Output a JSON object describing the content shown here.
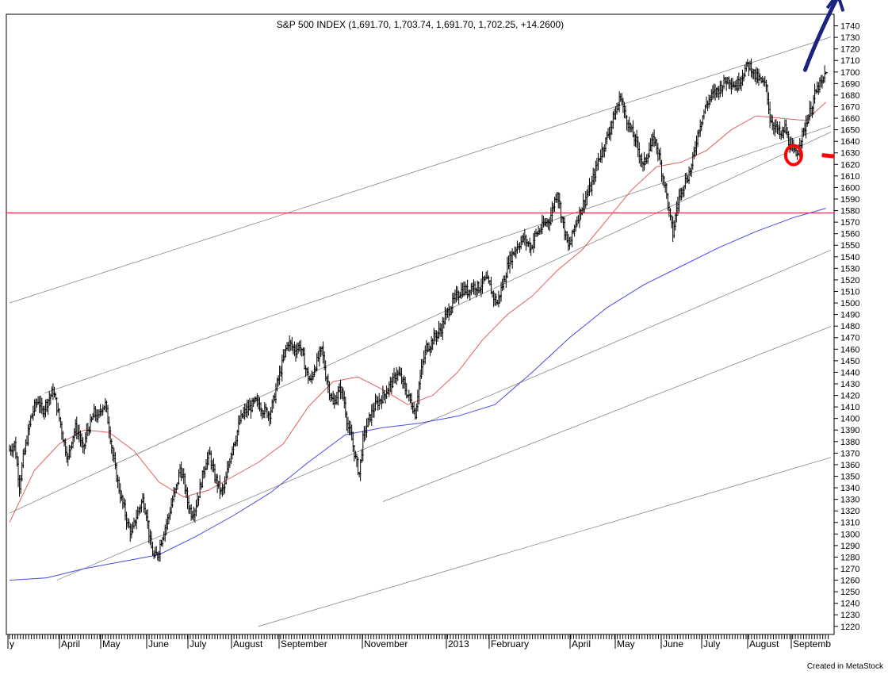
{
  "chart_data": {
    "type": "bar",
    "subtype": "ohlc",
    "title": "S&P 500 INDEX (1,691.70, 1,703.74, 1,691.70, 1,702.25, +14.2600)",
    "series": [
      {
        "name": "S&P 500 INDEX",
        "kind": "ohlc",
        "color": "#000000"
      }
    ],
    "last_bar": {
      "open": 1691.7,
      "high": 1703.74,
      "low": 1691.7,
      "close": 1702.25,
      "change": 14.26
    },
    "x_labels": [
      "y",
      "April",
      "May",
      "June",
      "July",
      "August",
      "September",
      "November",
      "2013",
      "February",
      "April",
      "May",
      "June",
      "July",
      "August",
      "Septemb"
    ],
    "y_ticks": [
      1220,
      1230,
      1240,
      1250,
      1260,
      1270,
      1280,
      1290,
      1300,
      1310,
      1320,
      1330,
      1340,
      1350,
      1360,
      1370,
      1380,
      1390,
      1400,
      1410,
      1420,
      1430,
      1440,
      1450,
      1460,
      1470,
      1480,
      1490,
      1500,
      1510,
      1520,
      1530,
      1540,
      1550,
      1560,
      1570,
      1580,
      1590,
      1600,
      1610,
      1620,
      1630,
      1640,
      1650,
      1660,
      1670,
      1680,
      1690,
      1700,
      1710,
      1720,
      1730,
      1740
    ],
    "ylim": [
      1213,
      1750
    ],
    "y_axis_position": "right",
    "grid": false,
    "price_path": [
      [
        0,
        1373
      ],
      [
        2,
        1375
      ],
      [
        4,
        1378
      ],
      [
        6,
        1360
      ],
      [
        8,
        1342
      ],
      [
        11,
        1366
      ],
      [
        14,
        1382
      ],
      [
        17,
        1400
      ],
      [
        20,
        1410
      ],
      [
        23,
        1416
      ],
      [
        26,
        1406
      ],
      [
        29,
        1412
      ],
      [
        32,
        1418
      ],
      [
        35,
        1424
      ],
      [
        38,
        1410
      ],
      [
        41,
        1395
      ],
      [
        44,
        1378
      ],
      [
        47,
        1365
      ],
      [
        50,
        1382
      ],
      [
        53,
        1392
      ],
      [
        56,
        1386
      ],
      [
        59,
        1372
      ],
      [
        62,
        1388
      ],
      [
        65,
        1395
      ],
      [
        68,
        1405
      ],
      [
        71,
        1400
      ],
      [
        74,
        1410
      ],
      [
        77,
        1412
      ],
      [
        80,
        1392
      ],
      [
        83,
        1368
      ],
      [
        86,
        1350
      ],
      [
        89,
        1334
      ],
      [
        92,
        1322
      ],
      [
        95,
        1308
      ],
      [
        98,
        1300
      ],
      [
        101,
        1312
      ],
      [
        104,
        1322
      ],
      [
        107,
        1330
      ],
      [
        110,
        1318
      ],
      [
        113,
        1292
      ],
      [
        116,
        1280
      ],
      [
        119,
        1282
      ],
      [
        122,
        1295
      ],
      [
        125,
        1306
      ],
      [
        128,
        1316
      ],
      [
        131,
        1330
      ],
      [
        134,
        1340
      ],
      [
        137,
        1357
      ],
      [
        140,
        1346
      ],
      [
        143,
        1328
      ],
      [
        146,
        1318
      ],
      [
        149,
        1322
      ],
      [
        152,
        1335
      ],
      [
        155,
        1350
      ],
      [
        158,
        1364
      ],
      [
        161,
        1368
      ],
      [
        164,
        1352
      ],
      [
        167,
        1344
      ],
      [
        170,
        1336
      ],
      [
        173,
        1342
      ],
      [
        176,
        1360
      ],
      [
        179,
        1376
      ],
      [
        182,
        1384
      ],
      [
        185,
        1398
      ],
      [
        188,
        1404
      ],
      [
        191,
        1408
      ],
      [
        194,
        1410
      ],
      [
        197,
        1414
      ],
      [
        200,
        1413
      ],
      [
        203,
        1408
      ],
      [
        206,
        1406
      ],
      [
        209,
        1404
      ],
      [
        212,
        1415
      ],
      [
        215,
        1430
      ],
      [
        218,
        1442
      ],
      [
        221,
        1457
      ],
      [
        224,
        1466
      ],
      [
        227,
        1462
      ],
      [
        230,
        1459
      ],
      [
        233,
        1464
      ],
      [
        236,
        1452
      ],
      [
        239,
        1438
      ],
      [
        242,
        1432
      ],
      [
        245,
        1444
      ],
      [
        248,
        1452
      ],
      [
        251,
        1460
      ],
      [
        254,
        1438
      ],
      [
        257,
        1424
      ],
      [
        260,
        1412
      ],
      [
        263,
        1420
      ],
      [
        266,
        1426
      ],
      [
        269,
        1414
      ],
      [
        272,
        1392
      ],
      [
        275,
        1382
      ],
      [
        278,
        1365
      ],
      [
        281,
        1352
      ],
      [
        284,
        1382
      ],
      [
        287,
        1394
      ],
      [
        290,
        1402
      ],
      [
        293,
        1410
      ],
      [
        296,
        1414
      ],
      [
        299,
        1418
      ],
      [
        302,
        1422
      ],
      [
        305,
        1428
      ],
      [
        308,
        1432
      ],
      [
        311,
        1440
      ],
      [
        314,
        1436
      ],
      [
        317,
        1428
      ],
      [
        320,
        1420
      ],
      [
        323,
        1413
      ],
      [
        326,
        1404
      ],
      [
        329,
        1430
      ],
      [
        332,
        1448
      ],
      [
        335,
        1462
      ],
      [
        338,
        1464
      ],
      [
        341,
        1470
      ],
      [
        344,
        1474
      ],
      [
        347,
        1478
      ],
      [
        350,
        1488
      ],
      [
        353,
        1494
      ],
      [
        356,
        1500
      ],
      [
        359,
        1506
      ],
      [
        362,
        1510
      ],
      [
        365,
        1512
      ],
      [
        368,
        1510
      ],
      [
        371,
        1514
      ],
      [
        374,
        1515
      ],
      [
        377,
        1513
      ],
      [
        380,
        1518
      ],
      [
        383,
        1520
      ],
      [
        386,
        1514
      ],
      [
        389,
        1505
      ],
      [
        392,
        1500
      ],
      [
        395,
        1512
      ],
      [
        398,
        1522
      ],
      [
        401,
        1536
      ],
      [
        404,
        1542
      ],
      [
        407,
        1548
      ],
      [
        410,
        1552
      ],
      [
        413,
        1556
      ],
      [
        416,
        1552
      ],
      [
        419,
        1548
      ],
      [
        422,
        1558
      ],
      [
        425,
        1562
      ],
      [
        428,
        1566
      ],
      [
        431,
        1570
      ],
      [
        434,
        1572
      ],
      [
        437,
        1585
      ],
      [
        440,
        1597
      ],
      [
        443,
        1578
      ],
      [
        446,
        1562
      ],
      [
        449,
        1548
      ],
      [
        452,
        1558
      ],
      [
        455,
        1570
      ],
      [
        458,
        1578
      ],
      [
        461,
        1586
      ],
      [
        464,
        1594
      ],
      [
        467,
        1600
      ],
      [
        470,
        1612
      ],
      [
        473,
        1624
      ],
      [
        476,
        1632
      ],
      [
        479,
        1640
      ],
      [
        482,
        1650
      ],
      [
        485,
        1660
      ],
      [
        488,
        1668
      ],
      [
        491,
        1680
      ],
      [
        494,
        1664
      ],
      [
        497,
        1656
      ],
      [
        500,
        1648
      ],
      [
        503,
        1640
      ],
      [
        506,
        1630
      ],
      [
        509,
        1618
      ],
      [
        512,
        1628
      ],
      [
        515,
        1636
      ],
      [
        518,
        1642
      ],
      [
        521,
        1632
      ],
      [
        524,
        1614
      ],
      [
        527,
        1600
      ],
      [
        530,
        1578
      ],
      [
        533,
        1560
      ],
      [
        536,
        1582
      ],
      [
        539,
        1596
      ],
      [
        542,
        1604
      ],
      [
        545,
        1610
      ],
      [
        548,
        1618
      ],
      [
        551,
        1636
      ],
      [
        554,
        1652
      ],
      [
        557,
        1662
      ],
      [
        560,
        1672
      ],
      [
        563,
        1678
      ],
      [
        566,
        1682
      ],
      [
        569,
        1684
      ],
      [
        572,
        1688
      ],
      [
        575,
        1692
      ],
      [
        578,
        1694
      ],
      [
        581,
        1690
      ],
      [
        584,
        1688
      ],
      [
        587,
        1694
      ],
      [
        590,
        1700
      ],
      [
        593,
        1706
      ],
      [
        596,
        1704
      ],
      [
        599,
        1696
      ],
      [
        602,
        1694
      ],
      [
        605,
        1690
      ],
      [
        608,
        1688
      ],
      [
        611,
        1660
      ],
      [
        614,
        1654
      ],
      [
        617,
        1650
      ],
      [
        620,
        1644
      ],
      [
        623,
        1652
      ],
      [
        626,
        1640
      ],
      [
        629,
        1632
      ],
      [
        632,
        1628
      ],
      [
        635,
        1640
      ],
      [
        638,
        1648
      ],
      [
        641,
        1660
      ],
      [
        644,
        1668
      ],
      [
        647,
        1680
      ],
      [
        650,
        1688
      ],
      [
        653,
        1690
      ],
      [
        656,
        1702
      ]
    ],
    "moving_averages": [
      {
        "name": "short moving average",
        "color": "#e06060",
        "points": [
          [
            0,
            1310
          ],
          [
            20,
            1355
          ],
          [
            40,
            1378
          ],
          [
            60,
            1390
          ],
          [
            80,
            1388
          ],
          [
            100,
            1372
          ],
          [
            120,
            1345
          ],
          [
            140,
            1332
          ],
          [
            160,
            1338
          ],
          [
            180,
            1350
          ],
          [
            200,
            1362
          ],
          [
            220,
            1378
          ],
          [
            240,
            1410
          ],
          [
            260,
            1432
          ],
          [
            280,
            1436
          ],
          [
            300,
            1425
          ],
          [
            320,
            1412
          ],
          [
            340,
            1420
          ],
          [
            360,
            1440
          ],
          [
            380,
            1468
          ],
          [
            400,
            1490
          ],
          [
            420,
            1506
          ],
          [
            440,
            1528
          ],
          [
            460,
            1546
          ],
          [
            480,
            1572
          ],
          [
            500,
            1598
          ],
          [
            520,
            1618
          ],
          [
            540,
            1622
          ],
          [
            560,
            1632
          ],
          [
            580,
            1650
          ],
          [
            600,
            1662
          ],
          [
            620,
            1660
          ],
          [
            640,
            1658
          ],
          [
            656,
            1674
          ]
        ]
      },
      {
        "name": "long moving average",
        "color": "#4848e8",
        "points": [
          [
            0,
            1260
          ],
          [
            30,
            1262
          ],
          [
            60,
            1270
          ],
          [
            90,
            1276
          ],
          [
            120,
            1282
          ],
          [
            150,
            1298
          ],
          [
            180,
            1316
          ],
          [
            210,
            1336
          ],
          [
            240,
            1362
          ],
          [
            270,
            1386
          ],
          [
            300,
            1392
          ],
          [
            330,
            1396
          ],
          [
            360,
            1402
          ],
          [
            390,
            1412
          ],
          [
            420,
            1440
          ],
          [
            450,
            1470
          ],
          [
            480,
            1496
          ],
          [
            510,
            1516
          ],
          [
            540,
            1532
          ],
          [
            570,
            1548
          ],
          [
            600,
            1562
          ],
          [
            630,
            1574
          ],
          [
            656,
            1582
          ]
        ]
      }
    ],
    "trendlines": [
      {
        "kind": "channel-upper",
        "color": "#888888",
        "x": [
          0,
          656
        ],
        "y": [
          1500,
          1729
        ]
      },
      {
        "kind": "channel-middle",
        "color": "#888888",
        "x": [
          0,
          656
        ],
        "y": [
          1318,
          1646
        ]
      },
      {
        "kind": "channel-lower",
        "color": "#888888",
        "x": [
          38,
          656
        ],
        "y": [
          1260,
          1544
        ]
      },
      {
        "kind": "channel-extra",
        "color": "#888888",
        "x": [
          28,
          656
        ],
        "y": [
          1422,
          1652
        ]
      },
      {
        "kind": "channel-deep",
        "color": "#888888",
        "x": [
          200,
          656
        ],
        "y": [
          1220,
          1365
        ]
      },
      {
        "kind": "channel-4",
        "color": "#888888",
        "x": [
          300,
          656
        ],
        "y": [
          1328,
          1478
        ]
      }
    ],
    "horizontal_line": {
      "value": 1578,
      "color": "#e02020"
    },
    "annotations": [
      {
        "kind": "circle",
        "color": "#ff0000",
        "x": 630,
        "y": 1628
      },
      {
        "kind": "arrow",
        "color": "#ff0000",
        "direction": "right",
        "x": 640,
        "y": 1628
      },
      {
        "kind": "hand-drawn-arrow",
        "color": "#1a237e",
        "direction": "up",
        "x": 652,
        "y": 1710
      }
    ]
  },
  "footer": {
    "credit": "Created in MetaStock"
  }
}
